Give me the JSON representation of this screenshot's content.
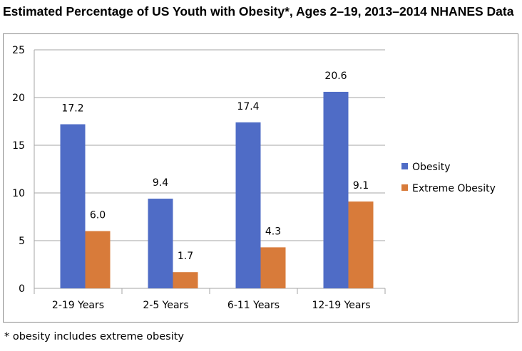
{
  "chart_data": {
    "type": "bar",
    "title": "Estimated Percentage of US Youth with Obesity*, Ages 2–19, 2013–2014 NHANES Data",
    "categories": [
      "2-19 Years",
      "2-5 Years",
      "6-11 Years",
      "12-19 Years"
    ],
    "series": [
      {
        "name": "Obesity",
        "values": [
          17.2,
          9.4,
          17.4,
          20.6
        ],
        "labels": [
          "17.2",
          "9.4",
          "17.4",
          "20.6"
        ],
        "color": "#4f6cc6"
      },
      {
        "name": "Extreme Obesity",
        "values": [
          6.0,
          1.7,
          4.3,
          9.1
        ],
        "labels": [
          "6.0",
          "1.7",
          "4.3",
          "9.1"
        ],
        "color": "#d87b3a"
      }
    ],
    "ylim": [
      0,
      25
    ],
    "yticks": [
      0,
      5,
      10,
      15,
      20,
      25
    ],
    "grid": true,
    "legend_position": "right",
    "xlabel": "",
    "ylabel": ""
  },
  "footnote": "* obesity includes extreme obesity"
}
